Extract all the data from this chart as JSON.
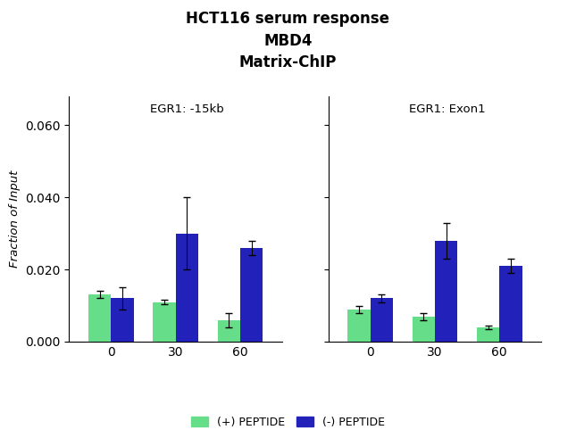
{
  "title_line1": "HCT116 serum response",
  "title_line2": "MBD4",
  "title_line3": "Matrix-ChIP",
  "ylabel": "Fraction of Input",
  "categories": [
    0,
    30,
    60
  ],
  "subplot1_label": "EGR1: -15kb",
  "subplot2_label": "EGR1: Exon1",
  "green_color": "#66dd88",
  "blue_color": "#2222bb",
  "subplot1_green_values": [
    0.013,
    0.011,
    0.006
  ],
  "subplot1_blue_values": [
    0.012,
    0.03,
    0.026
  ],
  "subplot1_green_errors": [
    0.001,
    0.0005,
    0.002
  ],
  "subplot1_blue_errors": [
    0.003,
    0.01,
    0.002
  ],
  "subplot2_green_values": [
    0.009,
    0.007,
    0.004
  ],
  "subplot2_blue_values": [
    0.012,
    0.028,
    0.021
  ],
  "subplot2_green_errors": [
    0.001,
    0.001,
    0.0005
  ],
  "subplot2_blue_errors": [
    0.001,
    0.005,
    0.002
  ],
  "ylim": [
    0,
    0.068
  ],
  "yticks": [
    0.0,
    0.02,
    0.04,
    0.06
  ],
  "legend_green": "(+) PEPTIDE",
  "legend_blue": "(-) PEPTIDE",
  "bar_width": 0.35,
  "background_color": "#ffffff"
}
